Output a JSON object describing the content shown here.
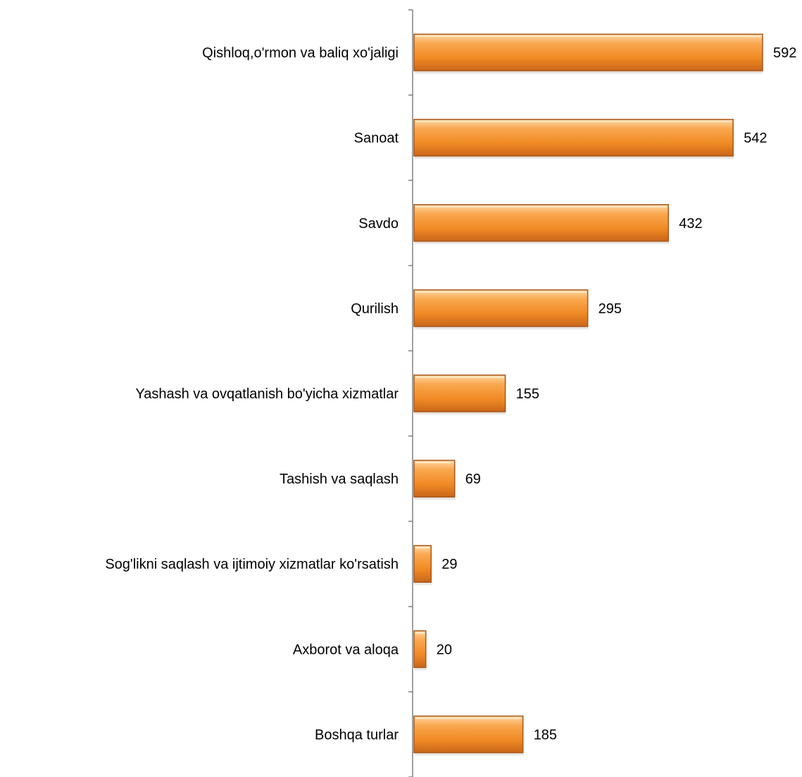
{
  "chart_data": {
    "type": "bar",
    "orientation": "horizontal",
    "title": "",
    "xlabel": "",
    "ylabel": "",
    "categories": [
      "Qishloq,o'rmon va baliq xo'jaligi",
      "Sanoat",
      "Savdo",
      "Qurilish",
      "Yashash va ovqatlanish bo'yicha xizmatlar",
      "Tashish va saqlash",
      "Sog'likni saqlash va ijtimoiy xizmatlar ko'rsatish",
      "Axborot va aloqa",
      "Boshqa turlar"
    ],
    "values": [
      592,
      542,
      432,
      295,
      155,
      69,
      29,
      20,
      185
    ],
    "data_labels": true,
    "grid": false,
    "legend": "none",
    "bar_color": "#f08a24",
    "bar_edge_color": "#a8561a"
  }
}
